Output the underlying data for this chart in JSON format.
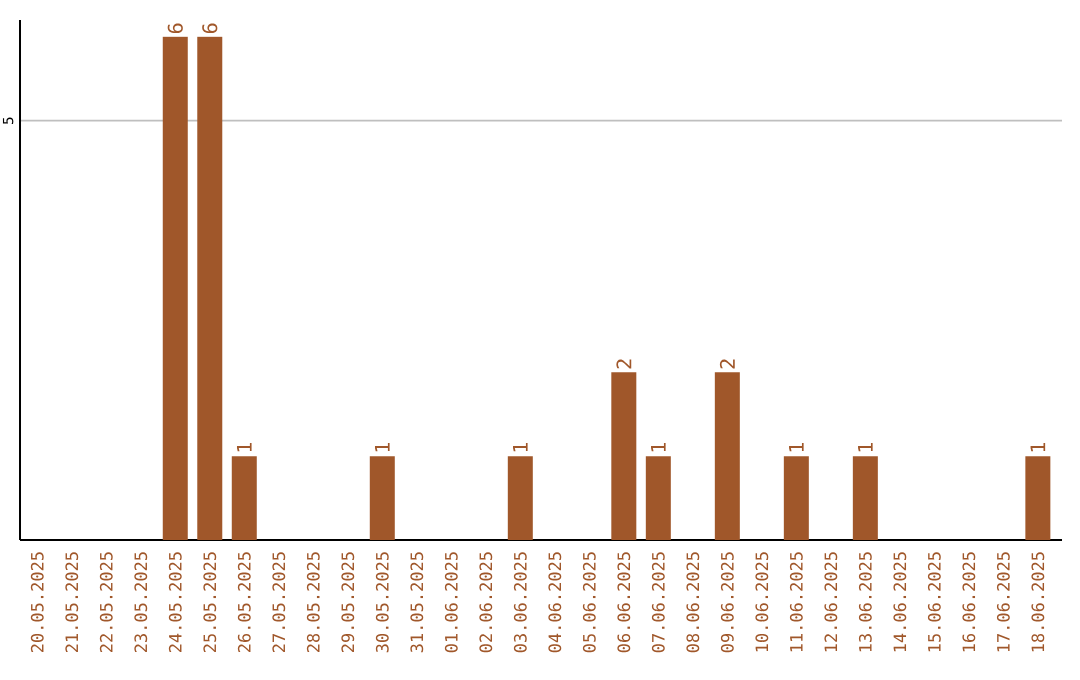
{
  "chart_data": {
    "type": "bar",
    "categories": [
      "20.05.2025",
      "21.05.2025",
      "22.05.2025",
      "23.05.2025",
      "24.05.2025",
      "25.05.2025",
      "26.05.2025",
      "27.05.2025",
      "28.05.2025",
      "29.05.2025",
      "30.05.2025",
      "31.05.2025",
      "01.06.2025",
      "02.06.2025",
      "03.06.2025",
      "04.06.2025",
      "05.06.2025",
      "06.06.2025",
      "07.06.2025",
      "08.06.2025",
      "09.06.2025",
      "10.06.2025",
      "11.06.2025",
      "12.06.2025",
      "13.06.2025",
      "14.06.2025",
      "15.06.2025",
      "16.06.2025",
      "17.06.2025",
      "18.06.2025"
    ],
    "values": [
      0,
      0,
      0,
      0,
      6,
      6,
      1,
      0,
      0,
      0,
      1,
      0,
      0,
      0,
      1,
      0,
      0,
      2,
      1,
      0,
      2,
      0,
      1,
      0,
      1,
      0,
      0,
      0,
      0,
      1
    ],
    "value_labels": [
      null,
      null,
      null,
      null,
      "6",
      "6",
      "1",
      null,
      null,
      null,
      "1",
      null,
      null,
      null,
      "1",
      null,
      null,
      "2",
      "1",
      null,
      "2",
      null,
      "1",
      null,
      "1",
      null,
      null,
      null,
      null,
      "1"
    ],
    "color": "#a0572a",
    "ylim": [
      0,
      6.2
    ],
    "yticks": [
      5
    ],
    "grid": "y"
  }
}
